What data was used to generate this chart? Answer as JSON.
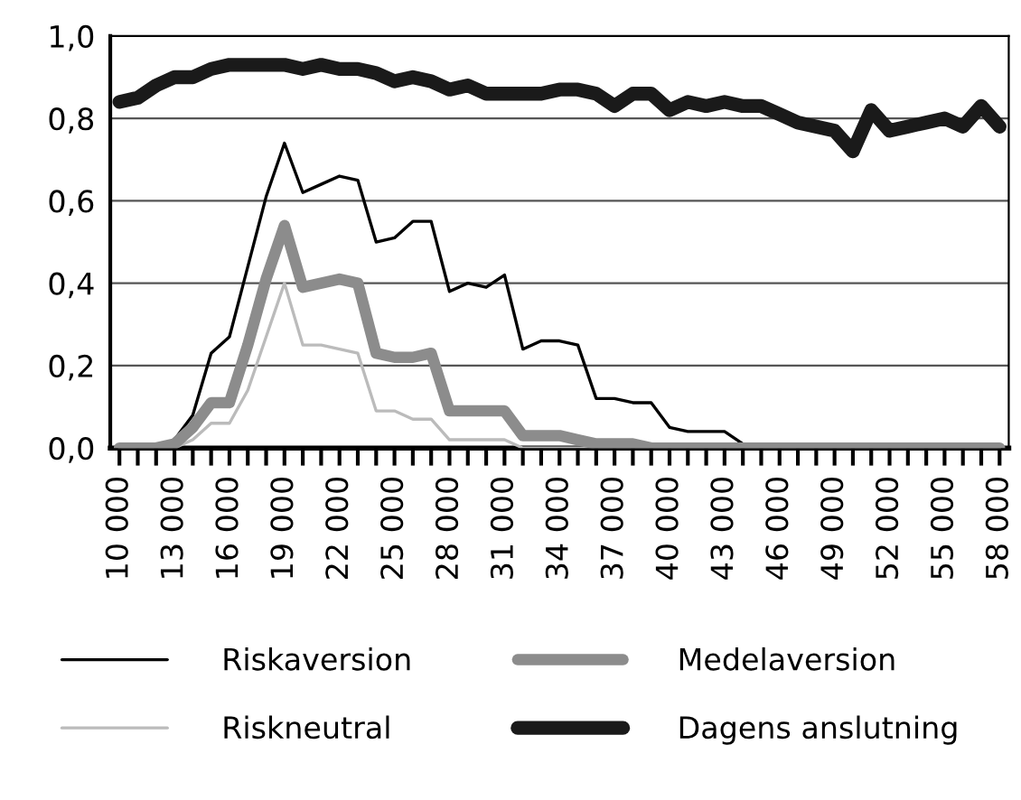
{
  "chart_data": {
    "type": "line",
    "categories": [
      "10 000",
      null,
      null,
      "13 000",
      null,
      null,
      "16 000",
      null,
      null,
      "19 000",
      null,
      null,
      "22 000",
      null,
      null,
      "25 000",
      null,
      null,
      "28 000",
      null,
      null,
      "31 000",
      null,
      null,
      "34 000",
      null,
      null,
      "37 000",
      null,
      null,
      "40 000",
      null,
      null,
      "43 000",
      null,
      null,
      "46 000",
      null,
      null,
      "49 000",
      null,
      null,
      "52 000",
      null,
      null,
      "55 000",
      null,
      null,
      "58 000"
    ],
    "series": [
      {
        "name": "Riskaversion",
        "color": "#000000",
        "values": [
          0,
          0,
          0,
          0.02,
          0.08,
          0.23,
          0.27,
          0.44,
          0.61,
          0.74,
          0.62,
          0.64,
          0.66,
          0.65,
          0.5,
          0.51,
          0.55,
          0.55,
          0.38,
          0.4,
          0.39,
          0.42,
          0.24,
          0.26,
          0.26,
          0.25,
          0.12,
          0.12,
          0.11,
          0.11,
          0.05,
          0.04,
          0.04,
          0.04,
          0.01,
          0,
          0,
          0.01,
          0,
          0,
          0,
          0,
          0,
          0,
          0,
          0,
          0,
          0,
          0
        ]
      },
      {
        "name": "Riskneutral",
        "color": "#bbbbbb",
        "values": [
          0,
          0,
          0,
          0,
          0.02,
          0.06,
          0.06,
          0.14,
          0.27,
          0.4,
          0.25,
          0.25,
          0.24,
          0.23,
          0.09,
          0.09,
          0.07,
          0.07,
          0.02,
          0.02,
          0.02,
          0.02,
          0,
          0,
          0,
          0,
          0,
          0,
          0,
          0,
          0,
          0,
          0,
          0,
          0,
          0,
          0,
          0,
          0,
          0,
          0,
          0,
          0,
          0,
          0,
          0,
          0,
          0,
          0
        ]
      },
      {
        "name": "Medelaversion",
        "color": "#8c8c8c",
        "values": [
          0,
          0,
          0,
          0.01,
          0.05,
          0.11,
          0.11,
          0.25,
          0.41,
          0.54,
          0.39,
          0.4,
          0.41,
          0.4,
          0.23,
          0.22,
          0.22,
          0.23,
          0.09,
          0.09,
          0.09,
          0.09,
          0.03,
          0.03,
          0.03,
          0.02,
          0.01,
          0.01,
          0.01,
          0,
          0,
          0,
          0,
          0,
          0,
          0,
          0,
          0,
          0,
          0,
          0,
          0,
          0,
          0,
          0,
          0,
          0,
          0,
          0
        ]
      },
      {
        "name": "Dagens anslutning",
        "color": "#1a1a1a",
        "values": [
          0.84,
          0.85,
          0.88,
          0.9,
          0.9,
          0.92,
          0.93,
          0.93,
          0.93,
          0.93,
          0.92,
          0.93,
          0.92,
          0.92,
          0.91,
          0.89,
          0.9,
          0.89,
          0.87,
          0.88,
          0.86,
          0.86,
          0.86,
          0.86,
          0.87,
          0.87,
          0.86,
          0.83,
          0.86,
          0.86,
          0.82,
          0.84,
          0.83,
          0.84,
          0.83,
          0.83,
          0.81,
          0.79,
          0.78,
          0.77,
          0.72,
          0.82,
          0.77,
          0.78,
          0.79,
          0.8,
          0.78,
          0.83,
          0.78
        ]
      }
    ],
    "ylim": [
      0,
      1
    ],
    "yticks": [
      {
        "value": 0,
        "label": "0,0"
      },
      {
        "value": 0.2,
        "label": "0,2"
      },
      {
        "value": 0.4,
        "label": "0,4"
      },
      {
        "value": 0.6,
        "label": "0,6"
      },
      {
        "value": 0.8,
        "label": "0,8"
      },
      {
        "value": 1,
        "label": "1,0"
      }
    ],
    "grid": "y",
    "legend": "bottom",
    "marker": "none",
    "line_style": "solid"
  }
}
